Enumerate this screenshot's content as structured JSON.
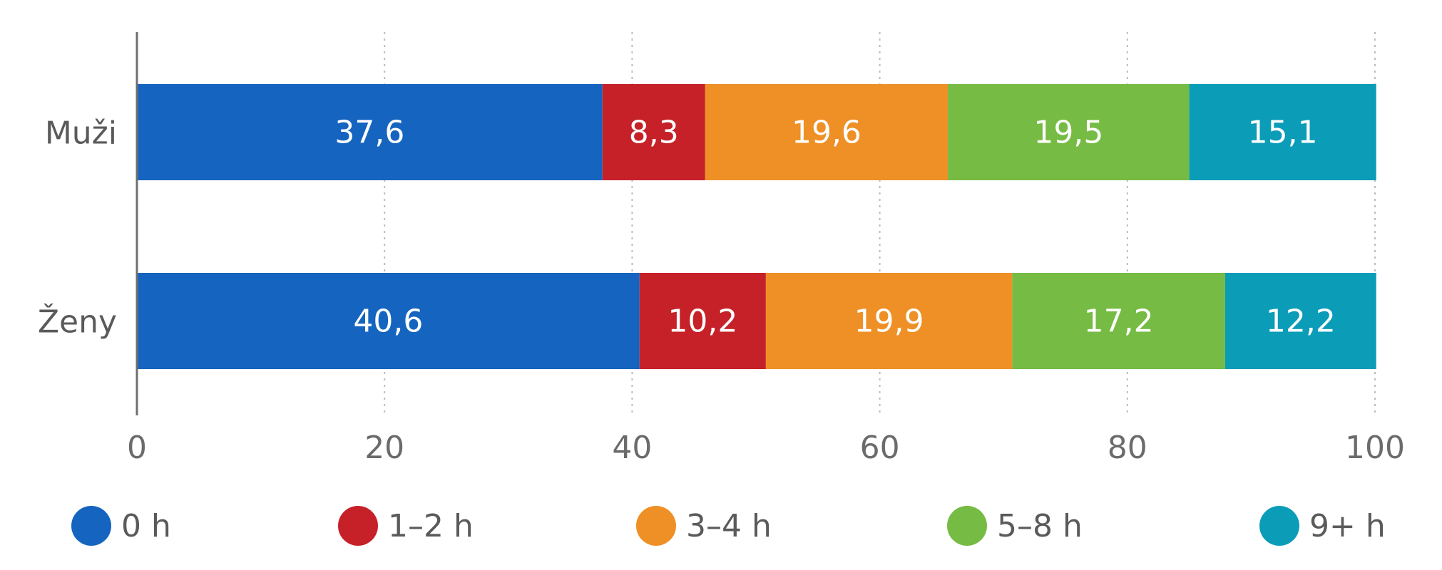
{
  "chart_data": {
    "type": "bar",
    "orientation": "horizontal",
    "stacked": true,
    "categories": [
      "Muži",
      "Ženy"
    ],
    "series": [
      {
        "name": "0 h",
        "color": "#1565c0",
        "values": [
          37.6,
          40.6
        ],
        "labels": [
          "37,6",
          "40,6"
        ]
      },
      {
        "name": "1–2 h",
        "color": "#c62128",
        "values": [
          8.3,
          10.2
        ],
        "labels": [
          "8,3",
          "10,2"
        ]
      },
      {
        "name": "3–4 h",
        "color": "#ee9026",
        "values": [
          19.6,
          19.9
        ],
        "labels": [
          "19,6",
          "19,9"
        ]
      },
      {
        "name": "5–8 h",
        "color": "#76bb43",
        "values": [
          19.5,
          17.2
        ],
        "labels": [
          "19,5",
          "17,2"
        ]
      },
      {
        "name": "9+ h",
        "color": "#0b9cb8",
        "values": [
          15.1,
          12.2
        ],
        "labels": [
          "15,1",
          "12,2"
        ]
      }
    ],
    "xticks": [
      0,
      20,
      40,
      60,
      80,
      100
    ],
    "xtick_labels": [
      "0",
      "20",
      "40",
      "60",
      "80",
      "100"
    ],
    "xlim": [
      0,
      100
    ],
    "grid": "vertical-dotted",
    "legend": "bottom",
    "title": "",
    "xlabel": "",
    "ylabel": ""
  }
}
